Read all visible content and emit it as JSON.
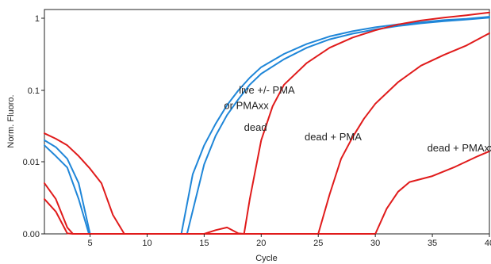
{
  "chart_data": {
    "type": "line",
    "xlabel": "Cycle",
    "ylabel": "Norm. Fluoro.",
    "xlim": [
      1,
      40
    ],
    "ylim": [
      0,
      1.3
    ],
    "y_scale": "log with linear segment near zero",
    "grid": false,
    "x_ticks": [
      {
        "value": 5,
        "label": "5"
      },
      {
        "value": 10,
        "label": "10"
      },
      {
        "value": 15,
        "label": "15"
      },
      {
        "value": 20,
        "label": "20"
      },
      {
        "value": 25,
        "label": "25"
      },
      {
        "value": 30,
        "label": "30"
      },
      {
        "value": 35,
        "label": "35"
      },
      {
        "value": 40,
        "label": "40"
      }
    ],
    "y_ticks": [
      {
        "value": 0,
        "label": "0.00"
      },
      {
        "value": 0.01,
        "label": "0.01"
      },
      {
        "value": 0.1,
        "label": "0.1"
      },
      {
        "value": 1,
        "label": "1"
      }
    ],
    "colors": {
      "live": "#1f86d8",
      "dead": "#e01b1b"
    },
    "series": [
      {
        "group": "live",
        "color": "#1f86d8",
        "points": [
          [
            1,
            0.02
          ],
          [
            2,
            0.016
          ],
          [
            3,
            0.011
          ],
          [
            4,
            0.005
          ],
          [
            5,
            0
          ],
          [
            13,
            0
          ],
          [
            14,
            0.0067
          ],
          [
            15,
            0.017
          ],
          [
            16,
            0.034
          ],
          [
            17,
            0.062
          ],
          [
            18,
            0.1
          ],
          [
            19,
            0.15
          ],
          [
            20,
            0.21
          ],
          [
            22,
            0.32
          ],
          [
            24,
            0.44
          ],
          [
            26,
            0.56
          ],
          [
            28,
            0.66
          ],
          [
            30,
            0.75
          ],
          [
            32,
            0.82
          ],
          [
            34,
            0.88
          ],
          [
            36,
            0.94
          ],
          [
            38,
            0.98
          ],
          [
            40,
            1.05
          ]
        ]
      },
      {
        "group": "live",
        "color": "#1f86d8",
        "points": [
          [
            1,
            0.017
          ],
          [
            2,
            0.012
          ],
          [
            3,
            0.0083
          ],
          [
            4,
            0.003
          ],
          [
            4.9,
            0
          ],
          [
            13.5,
            0
          ],
          [
            15,
            0.0092
          ],
          [
            16,
            0.023
          ],
          [
            17,
            0.045
          ],
          [
            18,
            0.075
          ],
          [
            19,
            0.12
          ],
          [
            20,
            0.17
          ],
          [
            22,
            0.27
          ],
          [
            24,
            0.39
          ],
          [
            26,
            0.51
          ],
          [
            28,
            0.61
          ],
          [
            30,
            0.7
          ],
          [
            32,
            0.78
          ],
          [
            34,
            0.85
          ],
          [
            36,
            0.91
          ],
          [
            38,
            0.96
          ],
          [
            40,
            1.02
          ]
        ]
      },
      {
        "group": "dead",
        "color": "#e01b1b",
        "points": [
          [
            1,
            0.025
          ],
          [
            2,
            0.021
          ],
          [
            3,
            0.017
          ],
          [
            4,
            0.012
          ],
          [
            5,
            0.008
          ],
          [
            6,
            0.005
          ],
          [
            7,
            0.0018
          ],
          [
            8,
            0
          ],
          [
            15,
            0
          ],
          [
            16,
            0.0011
          ],
          [
            17,
            0.0012
          ],
          [
            18,
            0.0006
          ],
          [
            18.5,
            0
          ],
          [
            19,
            0.003
          ],
          [
            20,
            0.02
          ],
          [
            21,
            0.06
          ],
          [
            22,
            0.12
          ],
          [
            24,
            0.24
          ],
          [
            26,
            0.39
          ],
          [
            28,
            0.54
          ],
          [
            30,
            0.68
          ],
          [
            32,
            0.82
          ],
          [
            34,
            0.93
          ],
          [
            36,
            1.02
          ],
          [
            38,
            1.1
          ],
          [
            40,
            1.2
          ]
        ]
      },
      {
        "group": "dead",
        "color": "#e01b1b",
        "points": [
          [
            1,
            0.005
          ],
          [
            2,
            0.003
          ],
          [
            3,
            0.0012
          ],
          [
            3.5,
            0
          ],
          [
            25,
            0
          ],
          [
            26,
            0.0035
          ],
          [
            27,
            0.011
          ],
          [
            28,
            0.022
          ],
          [
            29,
            0.04
          ],
          [
            30,
            0.065
          ],
          [
            32,
            0.13
          ],
          [
            34,
            0.22
          ],
          [
            36,
            0.31
          ],
          [
            38,
            0.42
          ],
          [
            40,
            0.62
          ]
        ]
      },
      {
        "group": "dead",
        "color": "#e01b1b",
        "points": [
          [
            1,
            0.003
          ],
          [
            2,
            0.002
          ],
          [
            3,
            0.0006
          ],
          [
            3.5,
            0
          ],
          [
            30,
            0
          ],
          [
            31,
            0.0022
          ],
          [
            32,
            0.0038
          ],
          [
            33,
            0.0052
          ],
          [
            35,
            0.0063
          ],
          [
            37,
            0.0085
          ],
          [
            39,
            0.012
          ],
          [
            40,
            0.014
          ]
        ]
      }
    ],
    "annotations": [
      {
        "text": "live +/- PMA",
        "x": 20.5,
        "y": 0.09
      },
      {
        "text": "or PMAxx",
        "x": 18.7,
        "y": 0.055
      },
      {
        "text": "dead",
        "x": 19.5,
        "y": 0.027
      },
      {
        "text": "dead + PMA",
        "x": 26.3,
        "y": 0.02
      },
      {
        "text": "dead + PMAxx",
        "x": 37.5,
        "y": 0.014
      }
    ]
  }
}
